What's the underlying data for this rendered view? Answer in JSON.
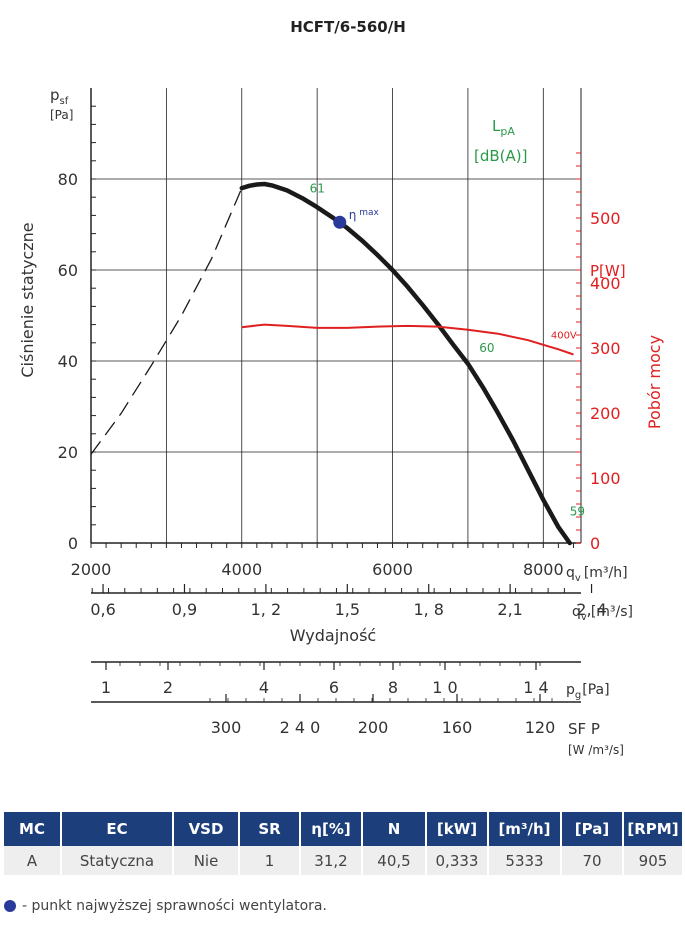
{
  "chart_data": {
    "type": "line",
    "title": "HCFT/6-560/H",
    "ylabel": "Ciśnienie statyczne",
    "ylabel_symbol": "p",
    "ylabel_sub": "sf",
    "ylabel_unit": "[Pa]",
    "y2label": "Pobór mocy",
    "y2label_unit": "P[W]",
    "xlabel": "Wydajność",
    "x_unit_main": "q",
    "x_unit_main_sub": "v",
    "x_unit_main_label": "[m³/h]",
    "x_unit_secondary_label": "[m³/s]",
    "xlim": [
      2000,
      8500
    ],
    "ylim": [
      0,
      100
    ],
    "y2lim": [
      0,
      700
    ],
    "x_ticks": [
      "2000",
      "4000",
      "6000",
      "8000"
    ],
    "y_ticks": [
      "0",
      "20",
      "40",
      "60",
      "80"
    ],
    "y2_ticks": [
      "0",
      "100",
      "200",
      "300",
      "400",
      "500"
    ],
    "qv_m3s_ticks": [
      {
        "value": 0.6,
        "label": "0,6"
      },
      {
        "value": 0.9,
        "label": "0,9"
      },
      {
        "value": 1.2,
        "label": "1, 2"
      },
      {
        "value": 1.5,
        "label": "1,5"
      },
      {
        "value": 1.8,
        "label": "1, 8"
      },
      {
        "value": 2.1,
        "label": "2,1"
      },
      {
        "value": 2.4,
        "label": "2, 4"
      }
    ],
    "lpa_label": "L",
    "lpa_sub": "pA",
    "lpa_unit": "[dB(A)]",
    "series": [
      {
        "name": "characteristic",
        "x": [
          4000,
          4100,
          4200,
          4300,
          4400,
          4600,
          4800,
          5000,
          5200,
          5400,
          5600,
          5800,
          6000,
          6200,
          6400,
          6600,
          6800,
          7000,
          7200,
          7400,
          7600,
          7800,
          8000,
          8200,
          8350
        ],
        "y": [
          78,
          78.5,
          78.8,
          78.9,
          78.6,
          77.5,
          75.8,
          73.8,
          71.6,
          69.2,
          66.4,
          63.3,
          60,
          56.3,
          52.3,
          48.1,
          43.7,
          39.4,
          34.2,
          28.5,
          22.5,
          16,
          9.5,
          3.5,
          0
        ]
      },
      {
        "name": "unstable",
        "x": [
          2000,
          2400,
          2800,
          3200,
          3600,
          4000
        ],
        "y": [
          19.5,
          28.5,
          39,
          50,
          62.5,
          78
        ]
      },
      {
        "name": "400V",
        "axis": "y2",
        "x": [
          4000,
          4300,
          4600,
          5000,
          5400,
          5800,
          6200,
          6600,
          7000,
          7400,
          7800,
          8000,
          8200,
          8400
        ],
        "y": [
          332,
          336,
          334,
          331,
          331,
          333,
          334,
          333,
          328,
          322,
          312,
          305,
          298,
          290
        ]
      }
    ],
    "eta_max": {
      "x": 5300,
      "y": 70.5,
      "label": "η",
      "label_sub": "max"
    },
    "annotations": [
      {
        "text": "61",
        "x": 4900,
        "y": 77
      },
      {
        "text": "60",
        "x": 7150,
        "y": 42
      },
      {
        "text": "59",
        "x": 8350,
        "y": 6
      },
      {
        "text": "400V",
        "x": 8100,
        "y2": 315
      }
    ],
    "pressure_scale": {
      "label": "p",
      "label_sub": "g",
      "label_unit": "[Pa]",
      "ticks": [
        "1",
        "2",
        "4",
        "6",
        "8",
        "1 0",
        "1 4"
      ]
    },
    "sfp_scale": {
      "label": "SF P",
      "label_unit": "[W /m³/s]",
      "ticks": [
        "300",
        "2 4 0",
        "200",
        "160",
        "120"
      ]
    }
  },
  "table": {
    "headers": [
      "MC",
      "EC",
      "VSD",
      "SR",
      "η[%]",
      "N",
      "[kW]",
      "[m³/h]",
      "[Pa]",
      "[RPM]"
    ],
    "row": [
      "A",
      "Statyczna",
      "Nie",
      "1",
      "31,2",
      "40,5",
      "0,333",
      "5333",
      "70",
      "905"
    ]
  },
  "legend_note": "- punkt najwyższej sprawności wentylatora.",
  "colors": {
    "curve": "#1a1a1a",
    "power": "#e02020",
    "green": "#2a9a4a",
    "grid": "#222222",
    "eta": "#2a3a9a",
    "header": "#1c3f7c"
  }
}
